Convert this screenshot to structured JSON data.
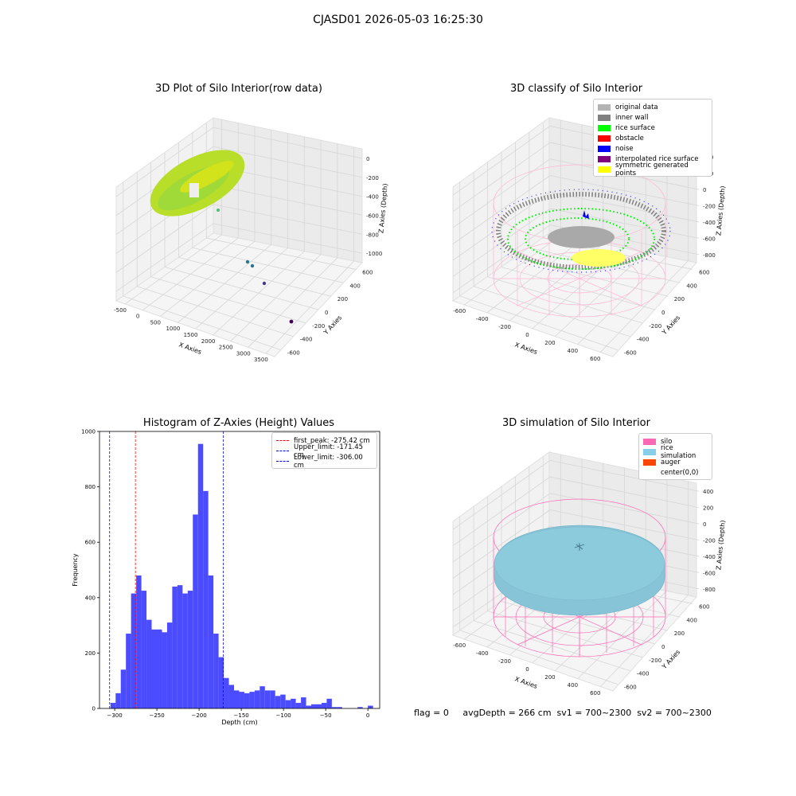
{
  "suptitle": "CJASD01 2026-05-03 16:25:30",
  "panels": {
    "raw": {
      "title": "3D Plot of Silo Interior(row data)",
      "xlabel": "X Axies",
      "ylabel": "Y Axies",
      "zlabel": "Z Axies (Depth)",
      "xticks": [
        "-500",
        "0",
        "500",
        "1000",
        "1500",
        "2000",
        "2500",
        "3000",
        "3500"
      ],
      "yticks": [
        "-600",
        "-400",
        "-200",
        "0",
        "200",
        "400",
        "600"
      ],
      "zticks": [
        "0",
        "-200",
        "-400",
        "-600",
        "-800",
        "-1000"
      ]
    },
    "classify": {
      "title": "3D classify of Silo Interior",
      "xlabel": "X Axies",
      "ylabel": "Y Axies",
      "zlabel": "Z Axies (Depth)",
      "xticks": [
        "-600",
        "-400",
        "-200",
        "0",
        "200",
        "400",
        "600"
      ],
      "yticks": [
        "-600",
        "-400",
        "-200",
        "0",
        "200",
        "400",
        "600"
      ],
      "zticks": [
        "400",
        "200",
        "0",
        "-200",
        "-400",
        "-600",
        "-800"
      ],
      "legend": [
        {
          "label": "original data",
          "color": "#b3b3b3"
        },
        {
          "label": "inner wall",
          "color": "#808080"
        },
        {
          "label": "rice surface",
          "color": "#00ff00"
        },
        {
          "label": "obstacle",
          "color": "#ff0000"
        },
        {
          "label": "noise",
          "color": "#0000ff"
        },
        {
          "label": "interpolated rice surface",
          "color": "#800080"
        },
        {
          "label": "symmetric generated points",
          "color": "#ffff00"
        }
      ]
    },
    "simulation": {
      "title": "3D simulation of Silo Interior",
      "xlabel": "X Axies",
      "ylabel": "Y Axies",
      "zlabel": "Z Axies (Depth)",
      "xticks": [
        "-600",
        "-400",
        "-200",
        "0",
        "200",
        "400",
        "600"
      ],
      "yticks": [
        "-600",
        "-400",
        "-200",
        "0",
        "200",
        "400",
        "600"
      ],
      "zticks": [
        "400",
        "200",
        "0",
        "-200",
        "-400",
        "-600",
        "-800"
      ],
      "legend": [
        {
          "label": "silo",
          "color": "#ff69b4"
        },
        {
          "label": "rice simulation",
          "color": "#87ceeb"
        },
        {
          "label": "auger",
          "color": "#ff4500"
        },
        {
          "label": "center(0,0)",
          "color": "#ffffff"
        }
      ]
    }
  },
  "footer": "flag = 0     avgDepth = 266 cm  sv1 = 700~2300  sv2 = 700~2300",
  "chart_data": [
    {
      "type": "histogram",
      "title": "Histogram of Z-Axies (Height) Values",
      "xlabel": "Depth (cm)",
      "ylabel": "Frequency",
      "bar_color": "#4b4bff",
      "bin_start": -305,
      "bin_width": 6.1,
      "values": [
        20,
        55,
        140,
        270,
        415,
        480,
        425,
        320,
        285,
        285,
        275,
        310,
        440,
        445,
        415,
        425,
        700,
        955,
        785,
        480,
        270,
        185,
        110,
        85,
        65,
        60,
        55,
        60,
        65,
        80,
        65,
        65,
        45,
        50,
        30,
        35,
        20,
        40,
        10,
        15,
        15,
        20,
        35,
        5,
        5,
        0,
        0,
        0,
        5,
        0,
        10
      ],
      "xlim": [
        -318,
        14
      ],
      "ylim": [
        0,
        1000
      ],
      "xticks": [
        -300,
        -250,
        -200,
        -150,
        -100,
        -50,
        0
      ],
      "yticks": [
        0,
        200,
        400,
        600,
        800,
        1000
      ],
      "vlines": [
        {
          "x": -275.42,
          "color": "#ff0000",
          "label": "first_peak: -275.42 cm"
        },
        {
          "x": -171.45,
          "color": "#0000ff",
          "label": "Upper_limit: -171.45 cm"
        },
        {
          "x": -306.0,
          "color": "#0000ff",
          "label": "Lower_limit: -306.00 cm"
        }
      ],
      "legend_position": "top-right"
    }
  ]
}
